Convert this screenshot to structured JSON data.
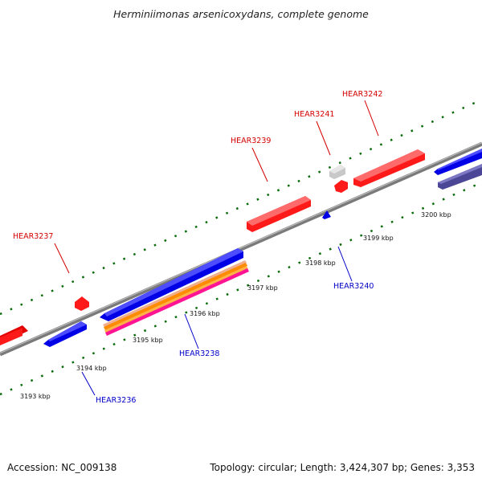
{
  "title": "Herminiimonas arsenicoxydans, complete genome",
  "footer": {
    "accession": "Accession: NC_009138",
    "summary": "Topology: circular; Length: 3,424,307 bp; Genes: 3,353"
  },
  "colors": {
    "forward_gene": "#ff0000",
    "reverse_gene": "#0000ff",
    "rna_or_other": "#c0c0c0",
    "dark_feature": "#4b4696",
    "backbone": "#808080",
    "tick": "#006400",
    "orange_track": "#ff8c00",
    "pink_track": "#ff1493"
  },
  "genes_upper": [
    {
      "label": "HEAR3237",
      "color": "#d40000"
    },
    {
      "label": "HEAR3239",
      "color": "#d40000"
    },
    {
      "label": "HEAR3241",
      "color": "#d40000"
    },
    {
      "label": "HEAR3242",
      "color": "#d40000"
    }
  ],
  "genes_lower": [
    {
      "label": "HEAR3236",
      "color": "#0000c8"
    },
    {
      "label": "HEAR3238",
      "color": "#0000c8"
    },
    {
      "label": "HEAR3240",
      "color": "#0000c8"
    }
  ],
  "kbp_labels": [
    "3193 kbp",
    "3194 kbp",
    "3195 kbp",
    "3196 kbp",
    "3197 kbp",
    "3198 kbp",
    "3199 kbp",
    "3200 kbp"
  ]
}
